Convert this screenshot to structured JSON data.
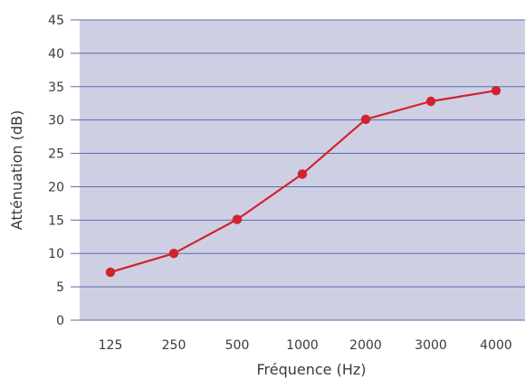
{
  "chart_data": {
    "type": "line",
    "title": "",
    "xlabel": "Fréquence (Hz)",
    "ylabel": "Atténuation (dB)",
    "categories": [
      "125",
      "250",
      "500",
      "1000",
      "2000",
      "3000",
      "4000"
    ],
    "series": [
      {
        "values": [
          7.2,
          10.0,
          15.1,
          21.9,
          30.1,
          32.8,
          34.4
        ],
        "color": "#d1232d"
      }
    ],
    "ylim": [
      0,
      45
    ],
    "yticks": [
      "0",
      "5",
      "10",
      "15",
      "20",
      "25",
      "30",
      "35",
      "40",
      "45"
    ],
    "grid": true,
    "colors": {
      "plot_background": "#cfcfe4",
      "grid_line": "#5a6fa8",
      "axis_line": "#5a6fa8",
      "text": "#3a3a3a"
    }
  }
}
